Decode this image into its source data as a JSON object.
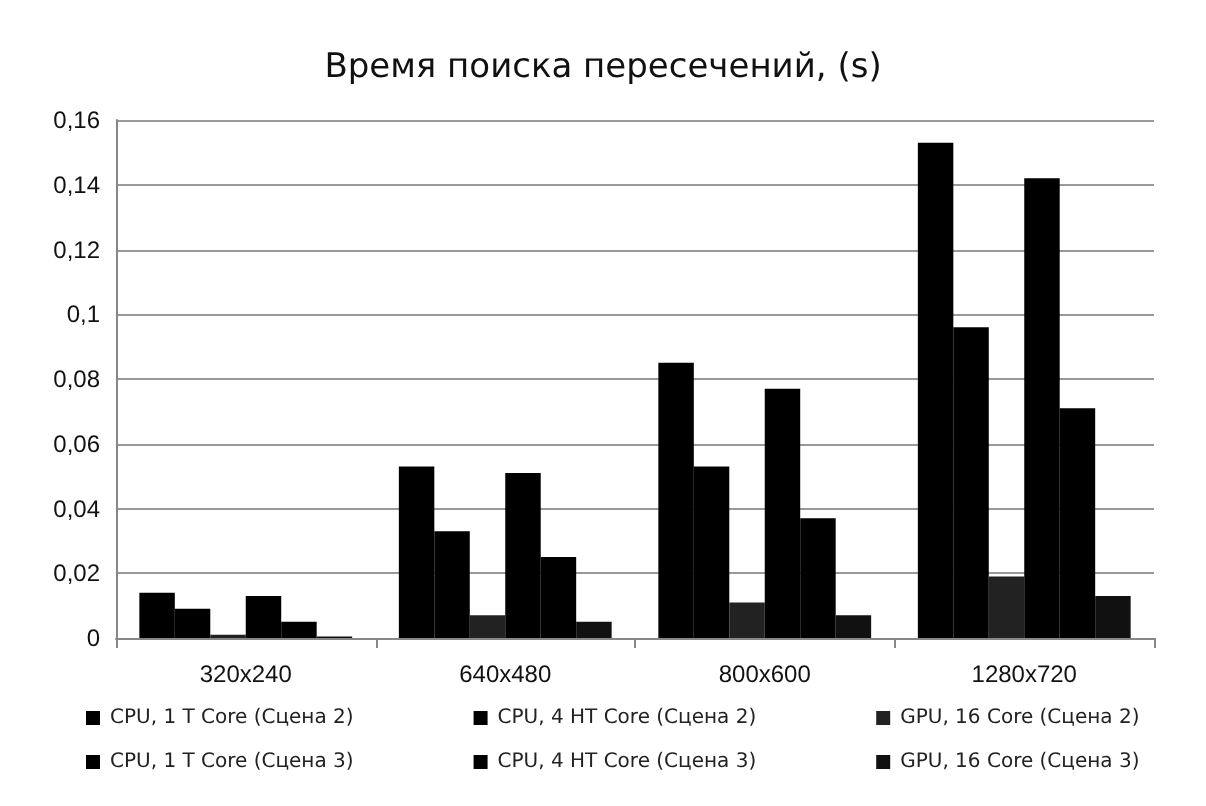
{
  "chart_data": {
    "type": "bar",
    "title": "Время поиска пересечений, (s)",
    "categories": [
      "320x240",
      "640x480",
      "800x600",
      "1280x720"
    ],
    "series": [
      {
        "name": "CPU, 1 T Core (Сцена 2)",
        "color": "#000000",
        "values": [
          0.014,
          0.053,
          0.085,
          0.153
        ]
      },
      {
        "name": "CPU, 4 HT Core (Сцена 2)",
        "color": "#000000",
        "values": [
          0.009,
          0.033,
          0.053,
          0.096
        ]
      },
      {
        "name": "GPU, 16 Core (Сцена 2)",
        "color": "#222222",
        "values": [
          0.001,
          0.007,
          0.011,
          0.019
        ]
      },
      {
        "name": "CPU, 1 T Core (Сцена 3)",
        "color": "#000000",
        "values": [
          0.013,
          0.051,
          0.077,
          0.142
        ]
      },
      {
        "name": "CPU, 4 HT Core (Сцена 3)",
        "color": "#000000",
        "values": [
          0.005,
          0.025,
          0.037,
          0.071
        ]
      },
      {
        "name": "GPU, 16 Core (Сцена 3)",
        "color": "#111111",
        "values": [
          0.0005,
          0.005,
          0.007,
          0.013
        ]
      }
    ],
    "ylim": [
      0,
      0.16
    ],
    "yticks": [
      0,
      {
        "value": 0.02,
        "label": "0,02"
      },
      {
        "value": 0.04,
        "label": "0,04"
      },
      {
        "value": 0.06,
        "label": "0,06"
      },
      {
        "value": 0.08,
        "label": "0,08"
      },
      {
        "value": 0.1,
        "label": "0,1"
      },
      {
        "value": 0.12,
        "label": "0,12"
      },
      {
        "value": 0.14,
        "label": "0,14"
      },
      {
        "value": 0.16,
        "label": "0,16"
      }
    ],
    "grid": "y",
    "legend": "bottom"
  }
}
